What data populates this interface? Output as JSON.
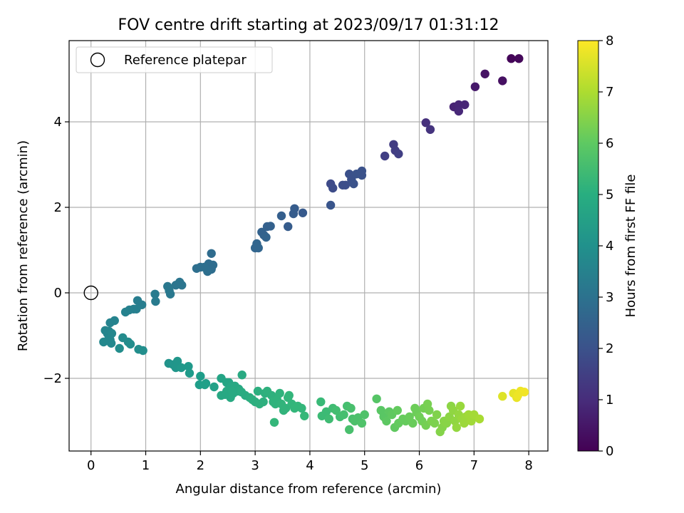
{
  "chart_data": {
    "type": "scatter",
    "title": "FOV centre drift starting at 2023/09/17 01:31:12",
    "xlabel": "Angular distance from reference (arcmin)",
    "ylabel": "Rotation from reference (arcmin)",
    "xlim": [
      -0.4,
      8.35
    ],
    "ylim": [
      -3.7,
      5.9
    ],
    "xticks": [
      "0",
      "1",
      "2",
      "3",
      "4",
      "5",
      "6",
      "7",
      "8"
    ],
    "yticks": [
      "−2",
      "0",
      "2",
      "4"
    ],
    "grid": true,
    "legend": {
      "placement": "top-left",
      "entries": [
        "Reference platepar"
      ]
    },
    "reference_point": {
      "x": 0,
      "y": 0
    },
    "colorbar": {
      "label": "Hours from first FF file",
      "colormap": "viridis",
      "range": [
        0,
        8
      ],
      "ticks": [
        "0",
        "1",
        "2",
        "3",
        "4",
        "5",
        "6",
        "7",
        "8"
      ]
    },
    "series": [
      {
        "points": [
          [
            7.68,
            5.48,
            0.1
          ],
          [
            7.82,
            5.48,
            0.15
          ],
          [
            7.2,
            5.12,
            0.4
          ],
          [
            7.52,
            4.96,
            0.35
          ],
          [
            7.02,
            4.82,
            0.55
          ],
          [
            6.63,
            4.35,
            0.8
          ],
          [
            6.72,
            4.4,
            0.85
          ],
          [
            6.72,
            4.25,
            0.9
          ],
          [
            6.83,
            4.4,
            0.85
          ],
          [
            6.12,
            3.98,
            1.1
          ],
          [
            6.2,
            3.82,
            1.2
          ],
          [
            5.53,
            3.47,
            1.4
          ],
          [
            5.56,
            3.33,
            1.45
          ],
          [
            5.37,
            3.2,
            1.5
          ],
          [
            5.62,
            3.25,
            1.5
          ],
          [
            4.38,
            2.55,
            1.8
          ],
          [
            4.42,
            2.45,
            1.85
          ],
          [
            4.65,
            2.52,
            1.9
          ],
          [
            4.72,
            2.78,
            1.95
          ],
          [
            4.76,
            2.65,
            1.95
          ],
          [
            4.6,
            2.52,
            1.9
          ],
          [
            4.85,
            2.78,
            2.0
          ],
          [
            4.95,
            2.85,
            2.0
          ],
          [
            4.95,
            2.75,
            2.0
          ],
          [
            4.8,
            2.55,
            2.0
          ],
          [
            4.38,
            2.05,
            2.1
          ],
          [
            3.6,
            1.55,
            2.3
          ],
          [
            3.7,
            1.85,
            2.3
          ],
          [
            3.72,
            1.97,
            2.3
          ],
          [
            3.87,
            1.87,
            2.25
          ],
          [
            3.48,
            1.8,
            2.4
          ],
          [
            3.28,
            1.56,
            2.45
          ],
          [
            3.22,
            1.55,
            2.45
          ],
          [
            3.12,
            1.42,
            2.5
          ],
          [
            3.16,
            1.35,
            2.5
          ],
          [
            3.03,
            1.15,
            2.6
          ],
          [
            3.0,
            1.05,
            2.6
          ],
          [
            3.06,
            1.05,
            2.6
          ],
          [
            3.2,
            1.3,
            2.55
          ],
          [
            2.2,
            0.92,
            2.8
          ],
          [
            2.15,
            0.68,
            2.85
          ],
          [
            2.23,
            0.65,
            2.85
          ],
          [
            2.2,
            0.55,
            2.85
          ],
          [
            2.13,
            0.5,
            2.9
          ],
          [
            2.07,
            0.6,
            2.9
          ],
          [
            2.0,
            0.6,
            2.9
          ],
          [
            1.93,
            0.57,
            2.9
          ],
          [
            1.62,
            0.25,
            3.1
          ],
          [
            1.66,
            0.18,
            3.1
          ],
          [
            1.55,
            0.18,
            3.1
          ],
          [
            1.4,
            0.15,
            3.2
          ],
          [
            1.43,
            0.05,
            3.2
          ],
          [
            1.45,
            -0.03,
            3.2
          ],
          [
            1.17,
            -0.03,
            3.3
          ],
          [
            1.18,
            -0.2,
            3.3
          ],
          [
            0.93,
            -0.28,
            3.4
          ],
          [
            0.85,
            -0.18,
            3.4
          ],
          [
            0.83,
            -0.38,
            3.45
          ],
          [
            0.78,
            -0.38,
            3.45
          ],
          [
            0.7,
            -0.4,
            3.5
          ],
          [
            0.63,
            -0.45,
            3.55
          ],
          [
            0.43,
            -0.65,
            3.6
          ],
          [
            0.35,
            -0.7,
            3.6
          ],
          [
            0.33,
            -0.9,
            3.65
          ],
          [
            0.3,
            -0.95,
            3.65
          ],
          [
            0.26,
            -0.88,
            3.65
          ],
          [
            0.38,
            -0.95,
            3.7
          ],
          [
            0.35,
            -1.1,
            3.7
          ],
          [
            0.3,
            -1.12,
            3.7
          ],
          [
            0.23,
            -1.15,
            3.75
          ],
          [
            0.37,
            -1.18,
            3.75
          ],
          [
            0.58,
            -1.05,
            3.85
          ],
          [
            0.68,
            -1.15,
            3.85
          ],
          [
            0.72,
            -1.2,
            3.9
          ],
          [
            0.52,
            -1.3,
            3.9
          ],
          [
            0.87,
            -1.32,
            3.95
          ],
          [
            0.95,
            -1.35,
            3.95
          ],
          [
            1.42,
            -1.65,
            4.1
          ],
          [
            1.5,
            -1.68,
            4.15
          ],
          [
            1.58,
            -1.6,
            4.2
          ],
          [
            1.55,
            -1.75,
            4.2
          ],
          [
            1.65,
            -1.75,
            4.25
          ],
          [
            1.78,
            -1.72,
            4.3
          ],
          [
            1.8,
            -1.88,
            4.35
          ],
          [
            2.0,
            -1.95,
            4.4
          ],
          [
            1.98,
            -2.15,
            4.45
          ],
          [
            2.1,
            -2.12,
            4.45
          ],
          [
            2.08,
            -2.15,
            4.5
          ],
          [
            2.25,
            -2.2,
            4.55
          ],
          [
            2.38,
            -2.0,
            4.65
          ],
          [
            2.48,
            -2.1,
            4.7
          ],
          [
            2.52,
            -2.1,
            4.7
          ],
          [
            2.56,
            -2.2,
            4.75
          ],
          [
            2.63,
            -2.18,
            4.8
          ],
          [
            2.7,
            -2.25,
            4.8
          ],
          [
            2.76,
            -1.92,
            4.85
          ],
          [
            2.68,
            -2.3,
            4.85
          ],
          [
            2.6,
            -2.35,
            4.85
          ],
          [
            2.55,
            -2.45,
            4.85
          ],
          [
            2.45,
            -2.38,
            4.8
          ],
          [
            2.38,
            -2.4,
            4.8
          ],
          [
            2.48,
            -2.3,
            4.8
          ],
          [
            2.58,
            -2.3,
            4.85
          ],
          [
            2.75,
            -2.32,
            4.9
          ],
          [
            2.82,
            -2.4,
            4.9
          ],
          [
            2.9,
            -2.45,
            4.95
          ],
          [
            2.95,
            -2.5,
            5.0
          ],
          [
            3.0,
            -2.55,
            5.0
          ],
          [
            3.05,
            -2.3,
            5.0
          ],
          [
            3.08,
            -2.6,
            5.05
          ],
          [
            3.15,
            -2.55,
            5.05
          ],
          [
            3.18,
            -2.35,
            5.05
          ],
          [
            3.22,
            -2.3,
            5.1
          ],
          [
            3.3,
            -2.4,
            5.1
          ],
          [
            3.33,
            -2.55,
            5.15
          ],
          [
            3.37,
            -2.6,
            5.15
          ],
          [
            3.4,
            -2.5,
            5.15
          ],
          [
            3.45,
            -2.35,
            5.15
          ],
          [
            3.48,
            -2.6,
            5.2
          ],
          [
            3.52,
            -2.75,
            5.2
          ],
          [
            3.56,
            -2.7,
            5.2
          ],
          [
            3.6,
            -2.45,
            5.25
          ],
          [
            3.62,
            -2.4,
            5.25
          ],
          [
            3.67,
            -2.6,
            5.25
          ],
          [
            3.72,
            -2.7,
            5.3
          ],
          [
            3.78,
            -2.65,
            5.3
          ],
          [
            3.85,
            -2.7,
            5.3
          ],
          [
            3.9,
            -2.88,
            5.35
          ],
          [
            3.35,
            -3.03,
            5.3
          ],
          [
            4.2,
            -2.55,
            5.4
          ],
          [
            4.22,
            -2.88,
            5.45
          ],
          [
            4.3,
            -2.78,
            5.45
          ],
          [
            4.35,
            -2.95,
            5.5
          ],
          [
            4.42,
            -2.7,
            5.5
          ],
          [
            4.48,
            -2.75,
            5.55
          ],
          [
            4.55,
            -2.9,
            5.55
          ],
          [
            4.62,
            -2.85,
            5.6
          ],
          [
            4.68,
            -2.65,
            5.6
          ],
          [
            4.72,
            -3.2,
            5.65
          ],
          [
            4.75,
            -2.7,
            5.65
          ],
          [
            4.78,
            -2.95,
            5.65
          ],
          [
            4.82,
            -3.0,
            5.7
          ],
          [
            4.88,
            -2.92,
            5.7
          ],
          [
            4.95,
            -3.05,
            5.75
          ],
          [
            5.0,
            -2.85,
            5.75
          ],
          [
            5.22,
            -2.48,
            5.85
          ],
          [
            5.3,
            -2.75,
            5.9
          ],
          [
            5.35,
            -2.9,
            5.9
          ],
          [
            5.4,
            -3.0,
            5.95
          ],
          [
            5.45,
            -2.78,
            5.95
          ],
          [
            5.5,
            -2.85,
            6.0
          ],
          [
            5.55,
            -3.15,
            6.0
          ],
          [
            5.6,
            -2.75,
            6.05
          ],
          [
            5.62,
            -3.05,
            6.05
          ],
          [
            5.7,
            -2.95,
            6.1
          ],
          [
            5.75,
            -3.0,
            6.1
          ],
          [
            5.82,
            -2.9,
            6.15
          ],
          [
            5.88,
            -3.05,
            6.15
          ],
          [
            5.92,
            -2.7,
            6.2
          ],
          [
            5.95,
            -2.8,
            6.2
          ],
          [
            6.0,
            -2.9,
            6.25
          ],
          [
            6.05,
            -3.0,
            6.25
          ],
          [
            6.08,
            -2.7,
            6.3
          ],
          [
            6.12,
            -3.1,
            6.3
          ],
          [
            6.15,
            -2.6,
            6.35
          ],
          [
            6.18,
            -2.75,
            6.35
          ],
          [
            6.22,
            -3.0,
            6.4
          ],
          [
            6.28,
            -3.05,
            6.4
          ],
          [
            6.32,
            -2.85,
            6.45
          ],
          [
            6.38,
            -3.25,
            6.5
          ],
          [
            6.42,
            -3.15,
            6.5
          ],
          [
            6.45,
            -3.0,
            6.55
          ],
          [
            6.5,
            -3.05,
            6.55
          ],
          [
            6.55,
            -2.9,
            6.6
          ],
          [
            6.58,
            -2.65,
            6.6
          ],
          [
            6.62,
            -2.75,
            6.65
          ],
          [
            6.65,
            -3.0,
            6.65
          ],
          [
            6.68,
            -3.15,
            6.7
          ],
          [
            6.72,
            -2.85,
            6.7
          ],
          [
            6.75,
            -2.65,
            6.75
          ],
          [
            6.78,
            -2.95,
            6.75
          ],
          [
            6.82,
            -3.05,
            6.8
          ],
          [
            6.85,
            -2.9,
            6.8
          ],
          [
            6.9,
            -2.85,
            6.85
          ],
          [
            6.95,
            -3.0,
            6.85
          ],
          [
            7.0,
            -2.85,
            6.9
          ],
          [
            7.1,
            -2.95,
            6.95
          ],
          [
            7.52,
            -2.42,
            7.6
          ],
          [
            7.72,
            -2.35,
            7.7
          ],
          [
            7.78,
            -2.45,
            7.75
          ],
          [
            7.85,
            -2.3,
            7.8
          ],
          [
            7.92,
            -2.32,
            7.85
          ],
          [
            7.8,
            -2.4,
            7.8
          ]
        ]
      }
    ]
  }
}
